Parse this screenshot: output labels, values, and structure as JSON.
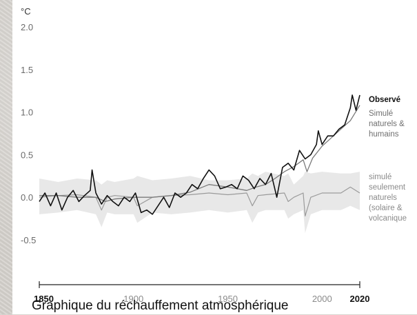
{
  "chart_data": {
    "type": "line",
    "y_unit": "°C",
    "y_ticks": [
      "2.0",
      "1.5",
      "1.0",
      "0.5",
      "0.0",
      "-0.5"
    ],
    "ylim": [
      -0.5,
      2.0
    ],
    "x_range": [
      1850,
      2020
    ],
    "x_ticks": [
      {
        "label": "1850",
        "bold": true
      },
      {
        "label": "1900",
        "bold": false
      },
      {
        "label": "1950",
        "bold": false
      },
      {
        "label": "2000",
        "bold": false
      },
      {
        "label": "2020",
        "bold": true
      }
    ],
    "legend": [
      {
        "lines": [
          "Observé"
        ],
        "color": "#111111",
        "bold": true
      },
      {
        "lines": [
          "Simulé",
          "naturels &",
          "humains"
        ],
        "color": "#6f6f6f",
        "bold": false
      },
      {
        "lines": [
          "simulé",
          "seulement",
          "naturels",
          "(solaire &",
          "volcanique"
        ],
        "color": "#8a8a8a",
        "bold": false,
        "natural": true
      }
    ],
    "series": [
      {
        "name": "Observé",
        "color": "#111111",
        "x": [
          1850,
          1853,
          1856,
          1859,
          1862,
          1865,
          1868,
          1871,
          1874,
          1877,
          1878,
          1880,
          1883,
          1886,
          1889,
          1892,
          1895,
          1898,
          1901,
          1904,
          1907,
          1910,
          1913,
          1916,
          1919,
          1922,
          1925,
          1928,
          1931,
          1934,
          1937,
          1940,
          1943,
          1946,
          1949,
          1952,
          1955,
          1958,
          1961,
          1964,
          1967,
          1970,
          1973,
          1976,
          1979,
          1982,
          1985,
          1988,
          1991,
          1994,
          1997,
          1998,
          2000,
          2003,
          2006,
          2009,
          2012,
          2015,
          2016,
          2018,
          2020
        ],
        "values": [
          -0.05,
          0.05,
          -0.1,
          0.05,
          -0.15,
          0.0,
          0.08,
          -0.05,
          0.02,
          0.08,
          0.32,
          0.05,
          -0.08,
          0.02,
          -0.05,
          -0.1,
          0.0,
          -0.05,
          0.05,
          -0.18,
          -0.15,
          -0.2,
          -0.1,
          0.0,
          -0.12,
          0.05,
          0.0,
          0.05,
          0.15,
          0.1,
          0.22,
          0.32,
          0.25,
          0.1,
          0.12,
          0.15,
          0.1,
          0.25,
          0.2,
          0.1,
          0.22,
          0.15,
          0.28,
          0.0,
          0.35,
          0.4,
          0.32,
          0.55,
          0.45,
          0.5,
          0.62,
          0.78,
          0.62,
          0.72,
          0.72,
          0.8,
          0.85,
          1.05,
          1.2,
          1.02,
          1.2
        ]
      },
      {
        "name": "Simulé naturels & humains",
        "color": "#7a7a7a",
        "x": [
          1850,
          1860,
          1870,
          1880,
          1885,
          1890,
          1900,
          1910,
          1920,
          1930,
          1940,
          1950,
          1955,
          1960,
          1965,
          1970,
          1975,
          1980,
          1985,
          1990,
          1992,
          1995,
          2000,
          2005,
          2010,
          2015,
          2020
        ],
        "values": [
          0.02,
          0.02,
          0.0,
          0.0,
          -0.05,
          -0.02,
          0.0,
          0.0,
          0.02,
          0.06,
          0.15,
          0.12,
          0.1,
          0.08,
          0.12,
          0.15,
          0.22,
          0.3,
          0.36,
          0.44,
          0.3,
          0.46,
          0.6,
          0.7,
          0.8,
          0.9,
          1.08
        ]
      },
      {
        "name": "simulé seulement naturels (solaire & volcanique)",
        "color": "#9a9a9a",
        "x": [
          1850,
          1860,
          1870,
          1880,
          1883,
          1886,
          1890,
          1900,
          1902,
          1910,
          1920,
          1930,
          1940,
          1950,
          1960,
          1963,
          1966,
          1970,
          1980,
          1982,
          1985,
          1990,
          1991,
          1994,
          2000,
          2010,
          2015,
          2020
        ],
        "values": [
          0.0,
          0.02,
          0.03,
          0.0,
          -0.15,
          0.0,
          0.02,
          0.0,
          -0.1,
          0.0,
          0.02,
          0.03,
          0.05,
          0.03,
          0.05,
          -0.1,
          0.02,
          0.03,
          0.05,
          -0.05,
          0.0,
          0.05,
          -0.22,
          0.0,
          0.05,
          0.05,
          0.12,
          0.05
        ]
      }
    ],
    "band_upper": [
      0.22,
      0.18,
      0.22,
      0.2,
      0.15,
      0.2,
      0.18,
      0.22,
      0.25,
      0.2,
      0.22,
      0.25,
      0.2,
      0.2,
      0.22,
      0.28,
      0.25,
      0.3,
      0.25,
      0.28,
      0.15,
      0.25,
      0.3,
      0.28,
      0.3,
      0.28,
      0.28,
      0.3
    ],
    "band_lower": [
      -0.2,
      -0.18,
      -0.15,
      -0.2,
      -0.35,
      -0.18,
      -0.2,
      -0.2,
      -0.3,
      -0.18,
      -0.2,
      -0.18,
      -0.15,
      -0.18,
      -0.15,
      -0.3,
      -0.18,
      -0.15,
      -0.15,
      -0.25,
      -0.2,
      -0.15,
      -0.42,
      -0.2,
      -0.15,
      -0.15,
      -0.1,
      -0.15
    ]
  },
  "caption": "Graphique du réchauffement atmosphérique"
}
